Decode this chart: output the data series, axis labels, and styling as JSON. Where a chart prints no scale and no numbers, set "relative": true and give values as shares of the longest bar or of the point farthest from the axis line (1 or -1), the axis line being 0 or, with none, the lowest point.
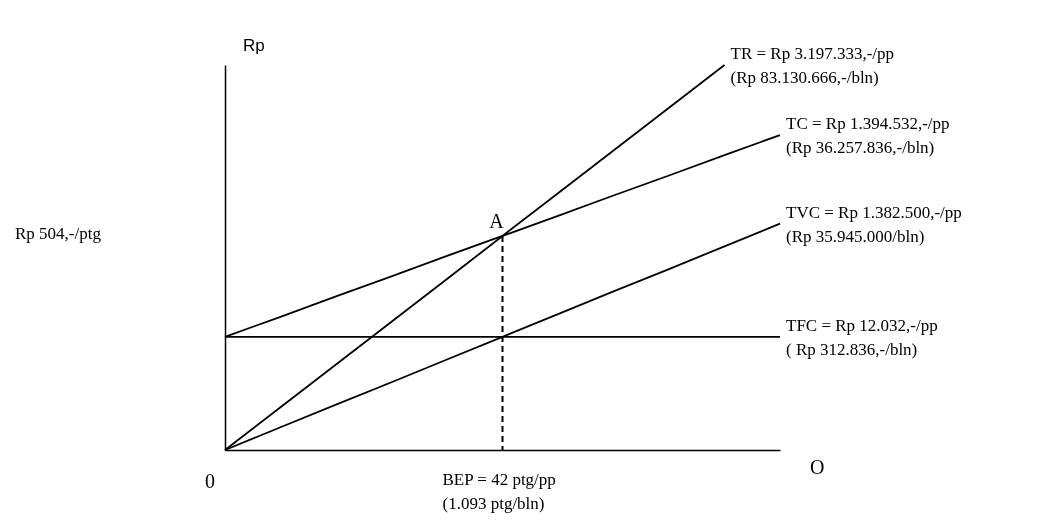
{
  "chart_data": {
    "type": "line",
    "relative": true,
    "ylabel": "Rp",
    "xlabel": "O",
    "legend": false,
    "grid": false,
    "line_style": "solid",
    "marker": "none",
    "categories": [
      null,
      null,
      null,
      null,
      null,
      null,
      null,
      null,
      null,
      null,
      null
    ],
    "series": [
      {
        "name": "TR = Rp  3.197.333,-/pp\n(Rp  83.130.666,-/bln)",
        "color": "#000000",
        "values": [
          0,
          0.111,
          0.222,
          0.333,
          0.444,
          0.556,
          0.667,
          0.778,
          0.889,
          1.0,
          null
        ]
      },
      {
        "name": "TC = Rp 1.394.532,-/pp\n(Rp 36.257.836,-/bln)",
        "color": "#000000",
        "values": [
          0.294,
          0.346,
          0.399,
          0.451,
          0.504,
          0.556,
          0.608,
          0.661,
          0.713,
          0.766,
          0.818
        ]
      },
      {
        "name": "TVC = Rp 1.382.500,-/pp\n(Rp 35.945.000/bln)",
        "color": "#000000",
        "values": [
          0,
          0.059,
          0.118,
          0.176,
          0.235,
          0.294,
          0.353,
          0.412,
          0.47,
          0.529,
          0.588
        ]
      },
      {
        "name": "TFC = Rp 12.032,-/pp\n( Rp 312.836,-/bln)",
        "color": "#000000",
        "values": [
          0.294,
          0.294,
          0.294,
          0.294,
          0.294,
          0.294,
          0.294,
          0.294,
          0.294,
          0.294,
          0.294
        ]
      }
    ],
    "annotations": [
      "A",
      "0",
      "Rp 504,-/ptg",
      "BEP = 42 ptg/pp\n(1.093 ptg/bln)"
    ]
  }
}
